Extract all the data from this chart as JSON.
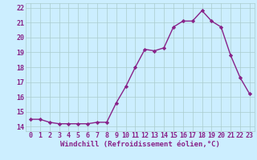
{
  "x": [
    0,
    1,
    2,
    3,
    4,
    5,
    6,
    7,
    8,
    9,
    10,
    11,
    12,
    13,
    14,
    15,
    16,
    17,
    18,
    19,
    20,
    21,
    22,
    23
  ],
  "y": [
    14.5,
    14.5,
    14.3,
    14.2,
    14.2,
    14.2,
    14.2,
    14.3,
    14.3,
    15.6,
    16.7,
    18.0,
    19.2,
    19.1,
    19.3,
    20.7,
    21.1,
    21.1,
    21.8,
    21.1,
    20.7,
    18.8,
    17.3,
    16.2
  ],
  "line_color": "#882288",
  "marker": "D",
  "markersize": 2.2,
  "linewidth": 1.0,
  "bg_color": "#cceeff",
  "grid_color": "#aacccc",
  "xlabel": "Windchill (Refroidissement éolien,°C)",
  "xlabel_fontsize": 6.5,
  "tick_fontsize": 6.0,
  "ylim": [
    13.7,
    22.3
  ],
  "yticks": [
    14,
    15,
    16,
    17,
    18,
    19,
    20,
    21,
    22
  ],
  "xlim": [
    -0.5,
    23.5
  ],
  "xticks": [
    0,
    1,
    2,
    3,
    4,
    5,
    6,
    7,
    8,
    9,
    10,
    11,
    12,
    13,
    14,
    15,
    16,
    17,
    18,
    19,
    20,
    21,
    22,
    23
  ]
}
